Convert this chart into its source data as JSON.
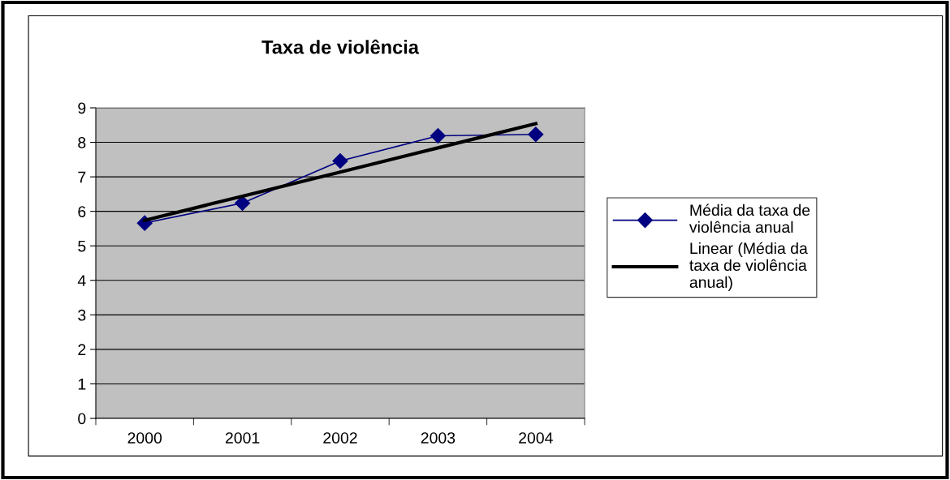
{
  "chart_data": {
    "type": "line",
    "title": "Taxa de violência",
    "categories": [
      "2000",
      "2001",
      "2002",
      "2003",
      "2004"
    ],
    "series": [
      {
        "name": "Média da taxa de violência anual",
        "color": "#000080",
        "values": [
          5.66,
          6.24,
          7.46,
          8.19,
          8.23
        ],
        "marker": "diamond"
      },
      {
        "name": "Linear (Média da taxa de violência anual)",
        "color": "#000000",
        "values": [
          5.74,
          6.44,
          7.14,
          7.84,
          8.54
        ],
        "marker": "none"
      }
    ],
    "ylim": [
      0,
      9
    ],
    "yticks": [
      0,
      1,
      2,
      3,
      4,
      5,
      6,
      7,
      8,
      9
    ],
    "grid": "y",
    "legend": "right",
    "line_style": "solid"
  }
}
